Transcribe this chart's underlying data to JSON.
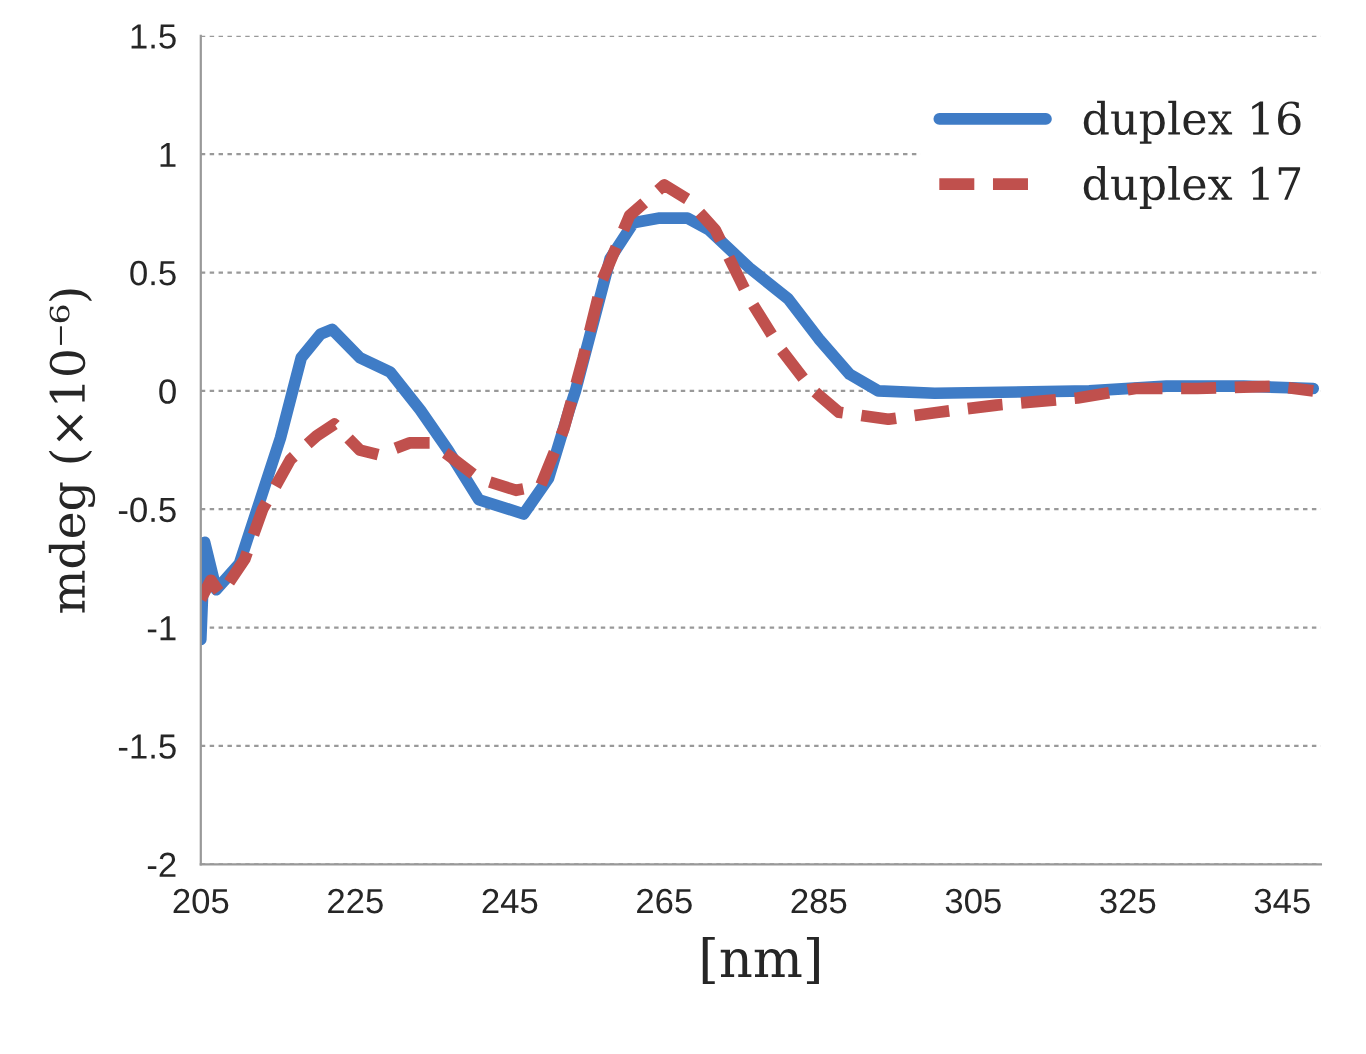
{
  "chart_data": {
    "type": "line",
    "xlabel": "[nm]",
    "ylabel": "mdeg (×10⁻⁶)",
    "xlim": [
      205,
      350
    ],
    "xticks": [
      205,
      225,
      245,
      265,
      285,
      305,
      325,
      345
    ],
    "ylim": [
      -2,
      1.5
    ],
    "yticks": [
      -2,
      -1.5,
      -1,
      -0.5,
      0,
      0.5,
      1,
      1.5
    ],
    "grid": "y",
    "legend": "top right",
    "marker": "none",
    "series": [
      {
        "name": "duplex 16",
        "color": "#3f7cc6",
        "line_style": "solid",
        "x": [
          205,
          205.5,
          207,
          210,
          212.7,
          215.3,
          218,
          220.5,
          222,
          225.6,
          229.5,
          233.4,
          237,
          241,
          246.8,
          250,
          252.7,
          253.5,
          258,
          261,
          264.4,
          268,
          270.8,
          276,
          281,
          285,
          289,
          292.7,
          300,
          320,
          330,
          340,
          349
        ],
        "values": [
          -1.05,
          -0.64,
          -0.84,
          -0.73,
          -0.46,
          -0.2,
          0.14,
          0.24,
          0.26,
          0.14,
          0.08,
          -0.08,
          -0.25,
          -0.46,
          -0.52,
          -0.37,
          -0.08,
          0,
          0.56,
          0.71,
          0.73,
          0.73,
          0.68,
          0.52,
          0.39,
          0.22,
          0.07,
          0,
          -0.01,
          0,
          0.02,
          0.02,
          0.01
        ]
      },
      {
        "name": "duplex 17",
        "color": "#c0504d",
        "line_style": "dashed",
        "x": [
          205,
          206.3,
          207.6,
          210.7,
          213,
          216.6,
          220,
          222.3,
          225.6,
          228,
          232,
          234.7,
          237,
          241,
          245.8,
          249,
          252,
          254.5,
          257,
          260.5,
          265,
          268,
          271.6,
          276,
          280,
          284,
          287.6,
          294,
          300.5,
          308,
          318.5,
          326,
          334,
          344,
          349
        ],
        "values": [
          -0.88,
          -0.8,
          -0.86,
          -0.71,
          -0.5,
          -0.29,
          -0.19,
          -0.14,
          -0.25,
          -0.27,
          -0.22,
          -0.22,
          -0.27,
          -0.37,
          -0.42,
          -0.4,
          -0.16,
          0.14,
          0.47,
          0.74,
          0.87,
          0.81,
          0.68,
          0.39,
          0.18,
          0.01,
          -0.09,
          -0.12,
          -0.09,
          -0.06,
          -0.03,
          0.01,
          0.01,
          0.02,
          0
        ]
      }
    ]
  }
}
